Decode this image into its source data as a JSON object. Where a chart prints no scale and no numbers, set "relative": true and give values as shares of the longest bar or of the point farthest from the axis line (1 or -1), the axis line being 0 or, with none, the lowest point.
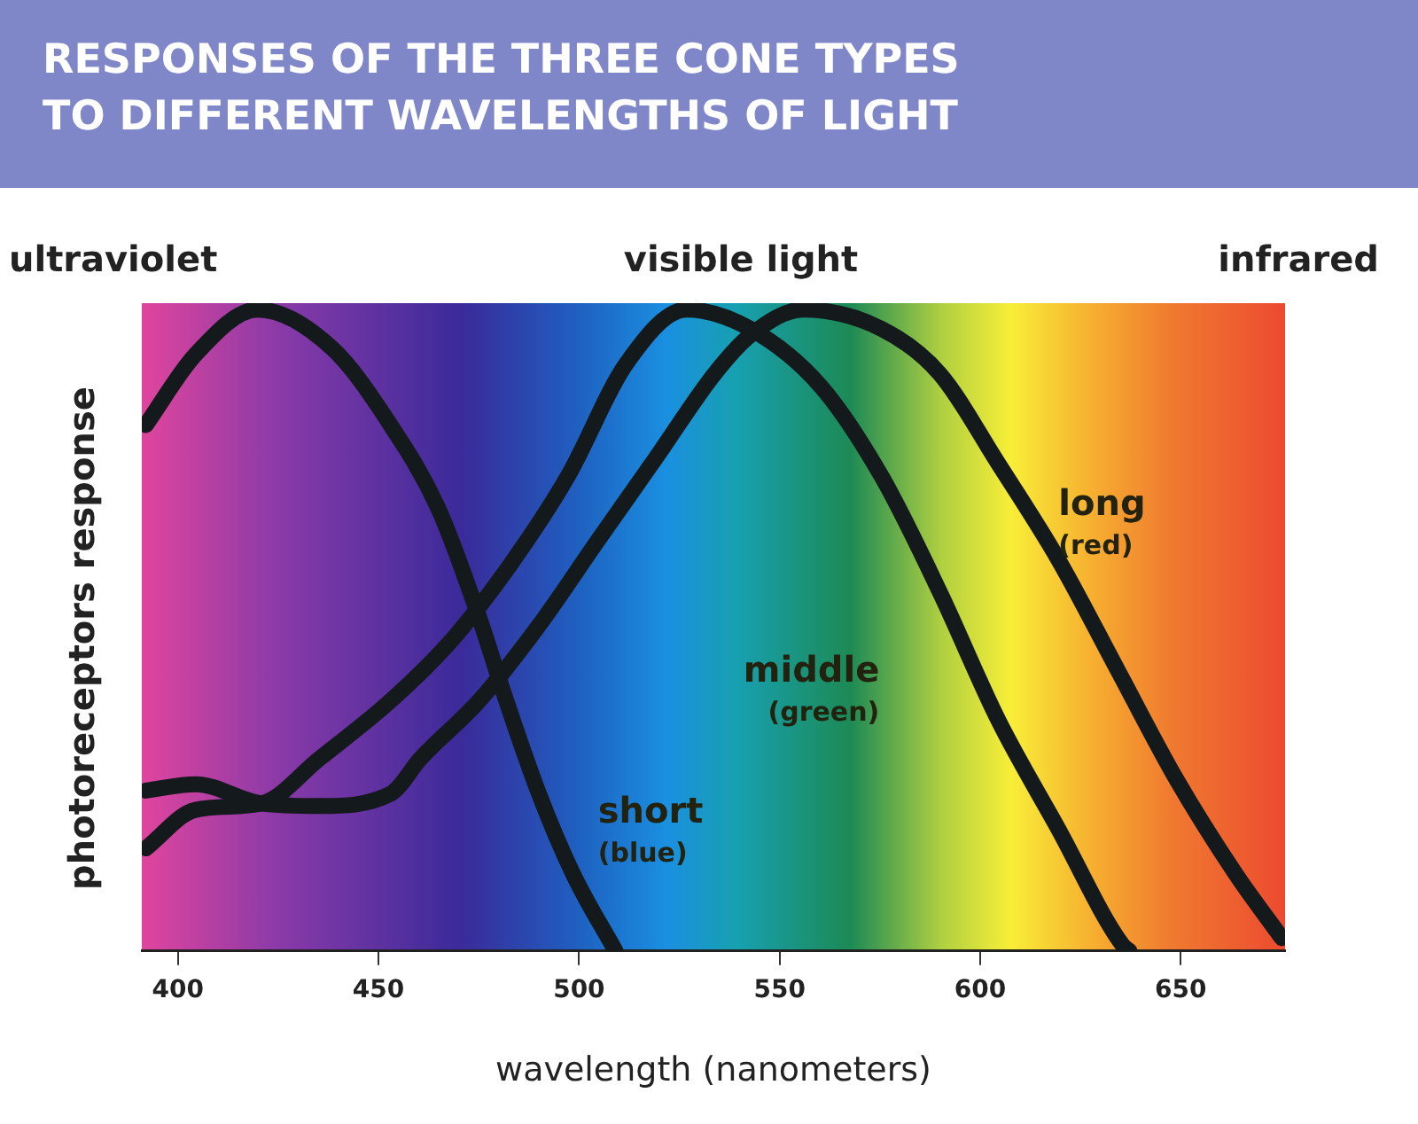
{
  "chart_data": {
    "type": "line",
    "title": "RESPONSES OF THE THREE CONE TYPES TO DIFFERENT WAVELENGTHS OF LIGHT",
    "xlabel": "wavelength (nanometers)",
    "ylabel": "photoreceptors response",
    "annotations": [
      "ultraviolet",
      "visible light",
      "infrared"
    ],
    "relative": true,
    "grid": false,
    "xlim": [
      391,
      676
    ],
    "xticks": [
      400,
      450,
      500,
      550,
      600,
      650
    ],
    "series": [
      {
        "name": "short (blue)",
        "color": "#141a1c",
        "x": [
          392,
          404.4,
          419.9,
          438.4,
          453,
          464.9,
          475.1,
          480.8,
          489.7,
          498.5,
          509.1
        ],
        "values": [
          0.82,
          0.93,
          1,
          0.94,
          0.82,
          0.69,
          0.52,
          0.41,
          0.25,
          0.12,
          0
        ]
      },
      {
        "name": "middle (green)",
        "color": "#141a1c",
        "x": [
          392,
          404.4,
          420.8,
          435.3,
          453,
          467.6,
          482.6,
          497.2,
          511.7,
          526.8,
          542.7,
          560.3,
          575.4,
          589.9,
          604.5,
          619.5,
          635.4,
          637.2
        ],
        "values": [
          0.16,
          0.22,
          0.23,
          0.3,
          0.39,
          0.48,
          0.6,
          0.74,
          0.915,
          1,
          0.97,
          0.88,
          0.74,
          0.56,
          0.36,
          0.19,
          0.01,
          0
        ]
      },
      {
        "name": "long (red)",
        "color": "#141a1c",
        "x": [
          392,
          404.4,
          420.8,
          435.3,
          453,
          460.5,
          475.1,
          489.7,
          504.7,
          519.3,
          533.8,
          542.7,
          555.9,
          575.4,
          589.9,
          604.5,
          619.5,
          634.1,
          648.7,
          663.7,
          675.2
        ],
        "values": [
          0.25,
          0.26,
          0.23,
          0.226,
          0.245,
          0.3,
          0.39,
          0.505,
          0.64,
          0.77,
          0.9,
          0.96,
          1,
          0.97,
          0.9,
          0.76,
          0.61,
          0.44,
          0.27,
          0.12,
          0.02
        ]
      }
    ]
  }
}
